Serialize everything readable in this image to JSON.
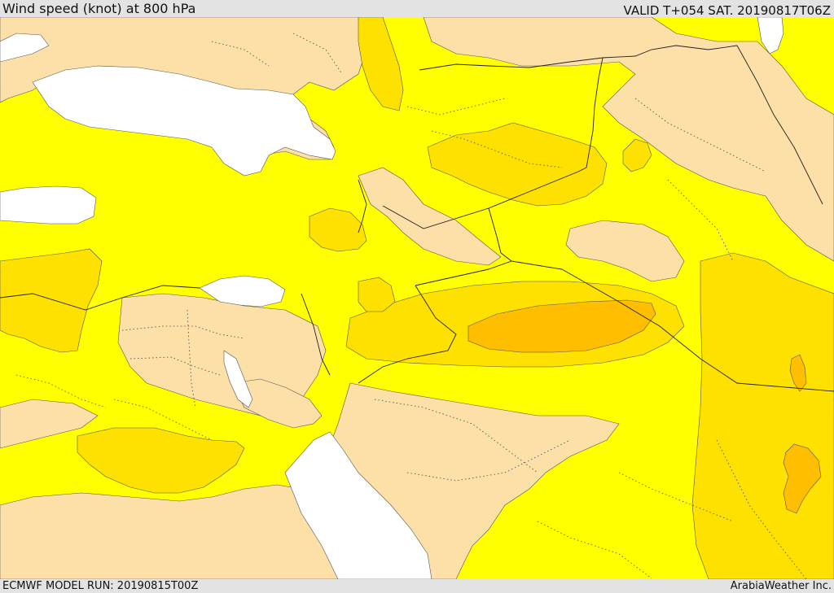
{
  "header": {
    "title": "Wind speed (knot) at 800 hPa",
    "valid": "VALID T+054 SAT. 20190817T06Z"
  },
  "footer": {
    "model_run": "ECMWF MODEL RUN: 20190815T00Z",
    "credit": "ArabiaWeather Inc."
  },
  "map": {
    "palette": {
      "calm": "#ffffff",
      "light": "#fde0a8",
      "moderate": "#ffff00",
      "fresh": "#ffe100",
      "strong": "#ffbe00"
    },
    "colors": {
      "contour_line": "#555555",
      "border_line": "#222222",
      "province_line": "#444444"
    }
  }
}
